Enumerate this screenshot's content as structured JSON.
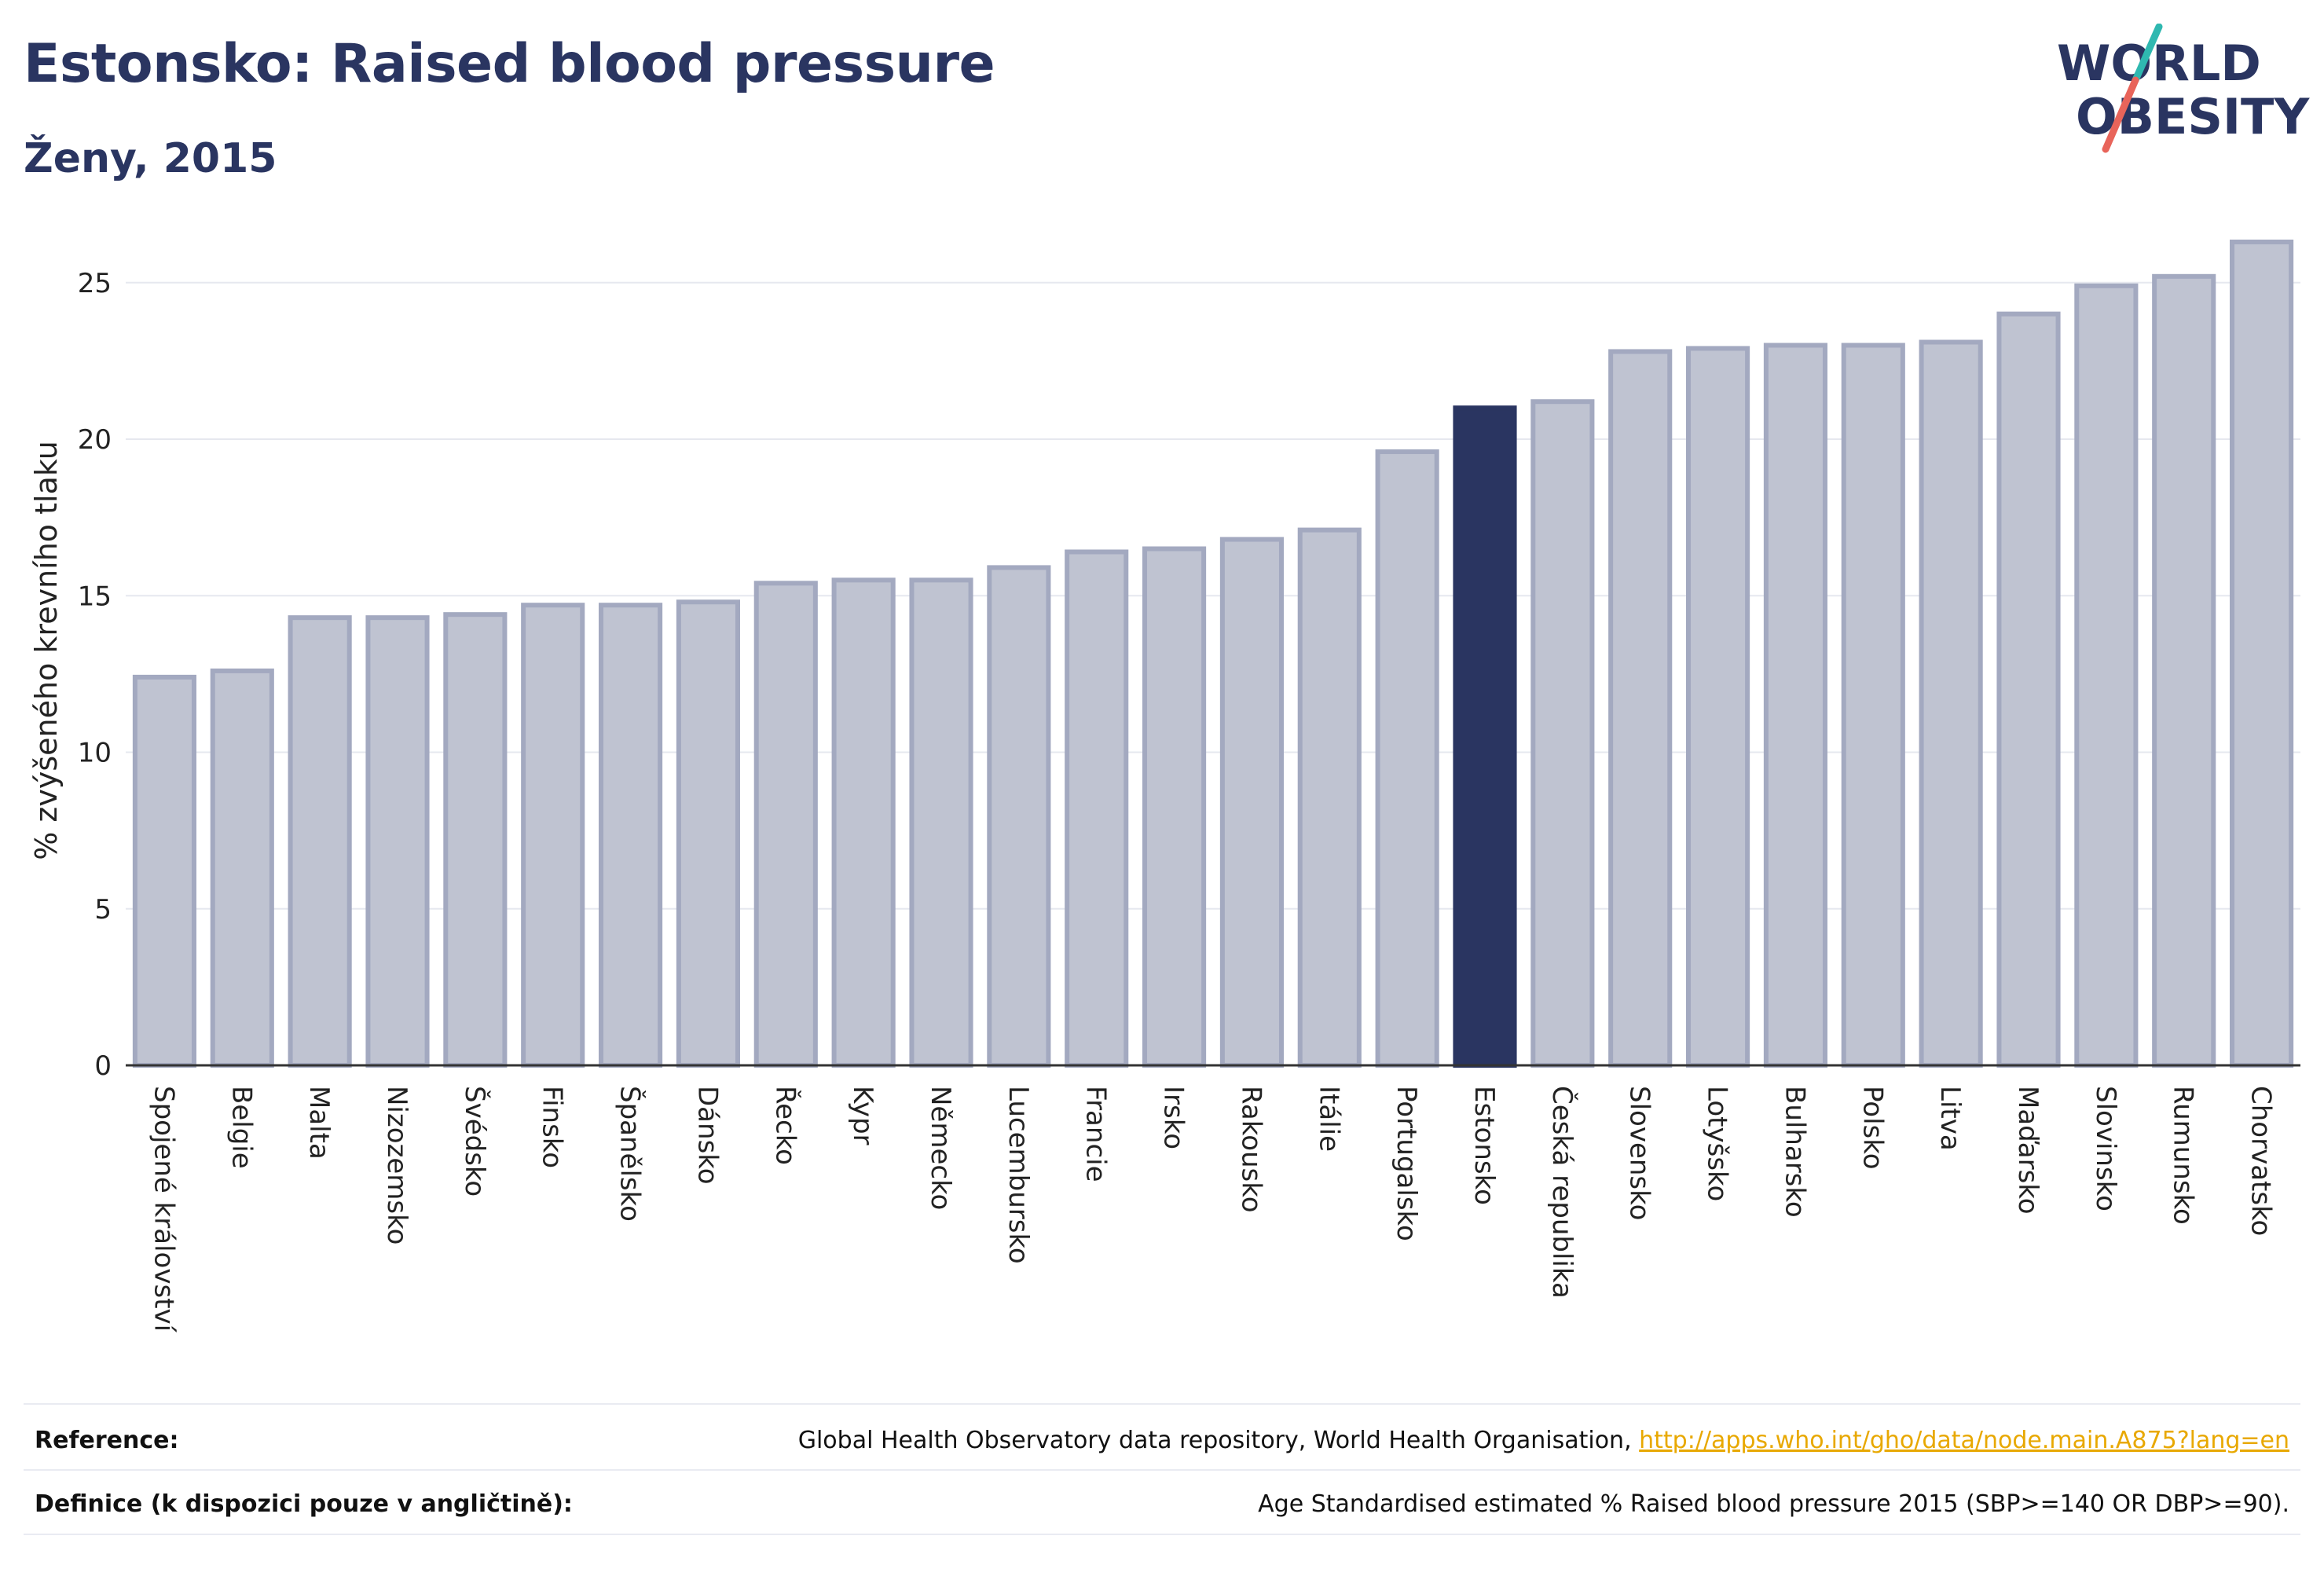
{
  "header": {
    "title": "Estonsko: Raised blood pressure",
    "subtitle": "Ženy, 2015"
  },
  "logo": {
    "line1": "WORLD",
    "line2": "OBESITY",
    "accent_teal": "#2fb8b0",
    "accent_red": "#e8645a",
    "text_color": "#2a3561"
  },
  "chart_data": {
    "type": "bar",
    "ylabel": "% zvýšeného krevního tlaku",
    "xlabel": "",
    "ylim": [
      0,
      26.5
    ],
    "yticks": [
      0,
      5,
      10,
      15,
      20,
      25
    ],
    "grid": true,
    "highlight": "Estonsko",
    "colors": {
      "bar_fill": "#bfc3d1",
      "bar_stroke": "#a3a9c0",
      "highlight_fill": "#2a3561",
      "grid": "#e6e8ef",
      "axis": "#333333"
    },
    "categories": [
      "Spojené království",
      "Belgie",
      "Malta",
      "Nizozemsko",
      "Švédsko",
      "Finsko",
      "Španělsko",
      "Dánsko",
      "Řecko",
      "Kypr",
      "Německo",
      "Lucembursko",
      "Francie",
      "Irsko",
      "Rakousko",
      "Itálie",
      "Portugalsko",
      "Estonsko",
      "Česká republika",
      "Slovensko",
      "Lotyšsko",
      "Bulharsko",
      "Polsko",
      "Litva",
      "Maďarsko",
      "Slovinsko",
      "Rumunsko",
      "Chorvatsko"
    ],
    "values": [
      12.4,
      12.6,
      14.3,
      14.3,
      14.4,
      14.7,
      14.7,
      14.8,
      15.4,
      15.5,
      15.5,
      15.9,
      16.4,
      16.5,
      16.8,
      17.1,
      19.6,
      21.0,
      21.2,
      22.8,
      22.9,
      23.0,
      23.0,
      23.1,
      24.0,
      24.9,
      25.2,
      26.3
    ]
  },
  "footer": {
    "reference_label": "Reference:",
    "reference_text": "Global Health Observatory data repository, World Health Organisation, ",
    "reference_link": "http://apps.who.int/gho/data/node.main.A875?lang=en",
    "definition_label": "Definice (k dispozici pouze v angličtině):",
    "definition_text": "Age Standardised estimated % Raised blood pressure 2015 (SBP>=140 OR DBP>=90)."
  }
}
